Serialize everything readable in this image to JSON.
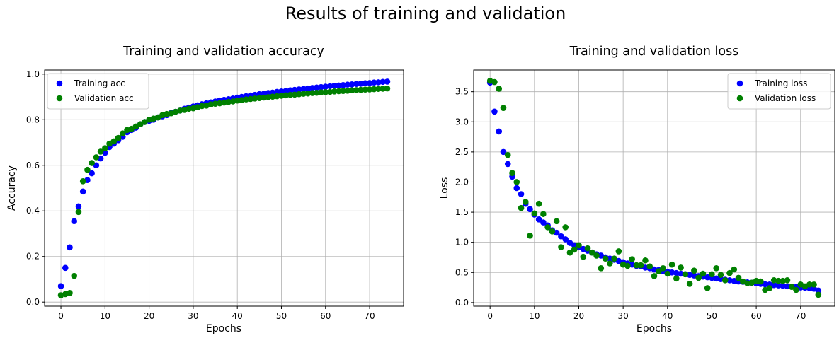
{
  "figure_title": "Results of training and validation",
  "chart_data": [
    {
      "type": "scatter",
      "title": "Training and validation accuracy",
      "xlabel": "Epochs",
      "ylabel": "Accuracy",
      "xlim": [
        -3.7,
        77.7
      ],
      "ylim": [
        -0.018,
        1.018
      ],
      "xticks": [
        0,
        10,
        20,
        30,
        40,
        50,
        60,
        70
      ],
      "yticks": [
        0.0,
        0.2,
        0.4,
        0.6,
        0.8,
        1.0
      ],
      "grid": true,
      "legend_position": "upper left",
      "series": [
        {
          "name": "Training acc",
          "color": "#0000ff",
          "x": [
            0,
            1,
            2,
            3,
            4,
            5,
            6,
            7,
            8,
            9,
            10,
            11,
            12,
            13,
            14,
            15,
            16,
            17,
            18,
            19,
            20,
            21,
            22,
            23,
            24,
            25,
            26,
            27,
            28,
            29,
            30,
            31,
            32,
            33,
            34,
            35,
            36,
            37,
            38,
            39,
            40,
            41,
            42,
            43,
            44,
            45,
            46,
            47,
            48,
            49,
            50,
            51,
            52,
            53,
            54,
            55,
            56,
            57,
            58,
            59,
            60,
            61,
            62,
            63,
            64,
            65,
            66,
            67,
            68,
            69,
            70,
            71,
            72,
            73,
            74
          ],
          "y": [
            0.07,
            0.15,
            0.24,
            0.355,
            0.42,
            0.485,
            0.535,
            0.565,
            0.6,
            0.63,
            0.655,
            0.68,
            0.695,
            0.71,
            0.725,
            0.745,
            0.755,
            0.765,
            0.78,
            0.79,
            0.795,
            0.8,
            0.81,
            0.815,
            0.82,
            0.83,
            0.835,
            0.84,
            0.848,
            0.853,
            0.858,
            0.863,
            0.868,
            0.872,
            0.876,
            0.88,
            0.884,
            0.887,
            0.89,
            0.893,
            0.897,
            0.9,
            0.903,
            0.906,
            0.909,
            0.912,
            0.914,
            0.917,
            0.919,
            0.922,
            0.924,
            0.926,
            0.929,
            0.931,
            0.933,
            0.935,
            0.937,
            0.939,
            0.941,
            0.943,
            0.945,
            0.947,
            0.949,
            0.95,
            0.952,
            0.954,
            0.955,
            0.957,
            0.958,
            0.96,
            0.961,
            0.963,
            0.964,
            0.966,
            0.967
          ]
        },
        {
          "name": "Validation acc",
          "color": "#008000",
          "x": [
            0,
            1,
            2,
            3,
            4,
            5,
            6,
            7,
            8,
            9,
            10,
            11,
            12,
            13,
            14,
            15,
            16,
            17,
            18,
            19,
            20,
            21,
            22,
            23,
            24,
            25,
            26,
            27,
            28,
            29,
            30,
            31,
            32,
            33,
            34,
            35,
            36,
            37,
            38,
            39,
            40,
            41,
            42,
            43,
            44,
            45,
            46,
            47,
            48,
            49,
            50,
            51,
            52,
            53,
            54,
            55,
            56,
            57,
            58,
            59,
            60,
            61,
            62,
            63,
            64,
            65,
            66,
            67,
            68,
            69,
            70,
            71,
            72,
            73,
            74
          ],
          "y": [
            0.03,
            0.035,
            0.04,
            0.115,
            0.395,
            0.53,
            0.58,
            0.61,
            0.635,
            0.66,
            0.675,
            0.695,
            0.705,
            0.72,
            0.74,
            0.755,
            0.76,
            0.77,
            0.78,
            0.79,
            0.8,
            0.805,
            0.81,
            0.82,
            0.825,
            0.828,
            0.835,
            0.84,
            0.843,
            0.848,
            0.85,
            0.855,
            0.86,
            0.862,
            0.867,
            0.87,
            0.872,
            0.875,
            0.878,
            0.88,
            0.884,
            0.886,
            0.889,
            0.891,
            0.893,
            0.895,
            0.897,
            0.899,
            0.901,
            0.903,
            0.905,
            0.907,
            0.909,
            0.91,
            0.912,
            0.914,
            0.915,
            0.917,
            0.918,
            0.92,
            0.921,
            0.922,
            0.924,
            0.925,
            0.926,
            0.927,
            0.929,
            0.93,
            0.931,
            0.932,
            0.933,
            0.934,
            0.935,
            0.936,
            0.937
          ]
        }
      ]
    },
    {
      "type": "scatter",
      "title": "Training and validation loss",
      "xlabel": "Epochs",
      "ylabel": "Loss",
      "xlim": [
        -3.7,
        77.7
      ],
      "ylim": [
        -0.06,
        3.86
      ],
      "xticks": [
        0,
        10,
        20,
        30,
        40,
        50,
        60,
        70
      ],
      "yticks": [
        0.0,
        0.5,
        1.0,
        1.5,
        2.0,
        2.5,
        3.0,
        3.5
      ],
      "grid": true,
      "legend_position": "upper right",
      "series": [
        {
          "name": "Training loss",
          "color": "#0000ff",
          "x": [
            0,
            1,
            2,
            3,
            4,
            5,
            6,
            7,
            8,
            9,
            10,
            11,
            12,
            13,
            14,
            15,
            16,
            17,
            18,
            19,
            20,
            21,
            22,
            23,
            24,
            25,
            26,
            27,
            28,
            29,
            30,
            31,
            32,
            33,
            34,
            35,
            36,
            37,
            38,
            39,
            40,
            41,
            42,
            43,
            44,
            45,
            46,
            47,
            48,
            49,
            50,
            51,
            52,
            53,
            54,
            55,
            56,
            57,
            58,
            59,
            60,
            61,
            62,
            63,
            64,
            65,
            66,
            67,
            68,
            69,
            70,
            71,
            72,
            73,
            74
          ],
          "y": [
            3.65,
            3.17,
            2.84,
            2.5,
            2.3,
            2.09,
            1.9,
            1.8,
            1.64,
            1.55,
            1.46,
            1.38,
            1.33,
            1.28,
            1.2,
            1.16,
            1.1,
            1.05,
            0.99,
            0.95,
            0.92,
            0.89,
            0.86,
            0.83,
            0.8,
            0.78,
            0.75,
            0.73,
            0.71,
            0.69,
            0.67,
            0.65,
            0.63,
            0.61,
            0.6,
            0.58,
            0.57,
            0.55,
            0.54,
            0.52,
            0.51,
            0.5,
            0.49,
            0.48,
            0.47,
            0.46,
            0.45,
            0.44,
            0.43,
            0.42,
            0.41,
            0.4,
            0.39,
            0.38,
            0.37,
            0.36,
            0.35,
            0.345,
            0.335,
            0.33,
            0.32,
            0.31,
            0.305,
            0.3,
            0.29,
            0.285,
            0.28,
            0.27,
            0.265,
            0.26,
            0.25,
            0.245,
            0.24,
            0.23,
            0.2
          ]
        },
        {
          "name": "Validation loss",
          "color": "#008000",
          "x": [
            0,
            1,
            2,
            3,
            4,
            5,
            6,
            7,
            8,
            9,
            10,
            11,
            12,
            13,
            14,
            15,
            16,
            17,
            18,
            19,
            20,
            21,
            22,
            23,
            24,
            25,
            26,
            27,
            28,
            29,
            30,
            31,
            32,
            33,
            34,
            35,
            36,
            37,
            38,
            39,
            40,
            41,
            42,
            43,
            44,
            45,
            46,
            47,
            48,
            49,
            50,
            51,
            52,
            53,
            54,
            55,
            56,
            57,
            58,
            59,
            60,
            61,
            62,
            63,
            64,
            65,
            66,
            67,
            68,
            69,
            70,
            71,
            72,
            73,
            74
          ],
          "y": [
            3.68,
            3.66,
            3.55,
            3.23,
            2.45,
            2.15,
            2.0,
            1.57,
            1.67,
            1.11,
            1.48,
            1.64,
            1.47,
            1.25,
            1.18,
            1.35,
            0.92,
            1.25,
            0.83,
            0.88,
            0.95,
            0.76,
            0.9,
            0.83,
            0.78,
            0.57,
            0.73,
            0.65,
            0.73,
            0.85,
            0.63,
            0.61,
            0.72,
            0.62,
            0.62,
            0.7,
            0.6,
            0.44,
            0.52,
            0.57,
            0.48,
            0.63,
            0.4,
            0.58,
            0.47,
            0.31,
            0.53,
            0.41,
            0.48,
            0.24,
            0.47,
            0.57,
            0.46,
            0.37,
            0.49,
            0.55,
            0.41,
            0.35,
            0.32,
            0.33,
            0.36,
            0.35,
            0.21,
            0.24,
            0.37,
            0.36,
            0.36,
            0.37,
            0.26,
            0.21,
            0.3,
            0.27,
            0.3,
            0.3,
            0.13
          ]
        }
      ]
    }
  ]
}
